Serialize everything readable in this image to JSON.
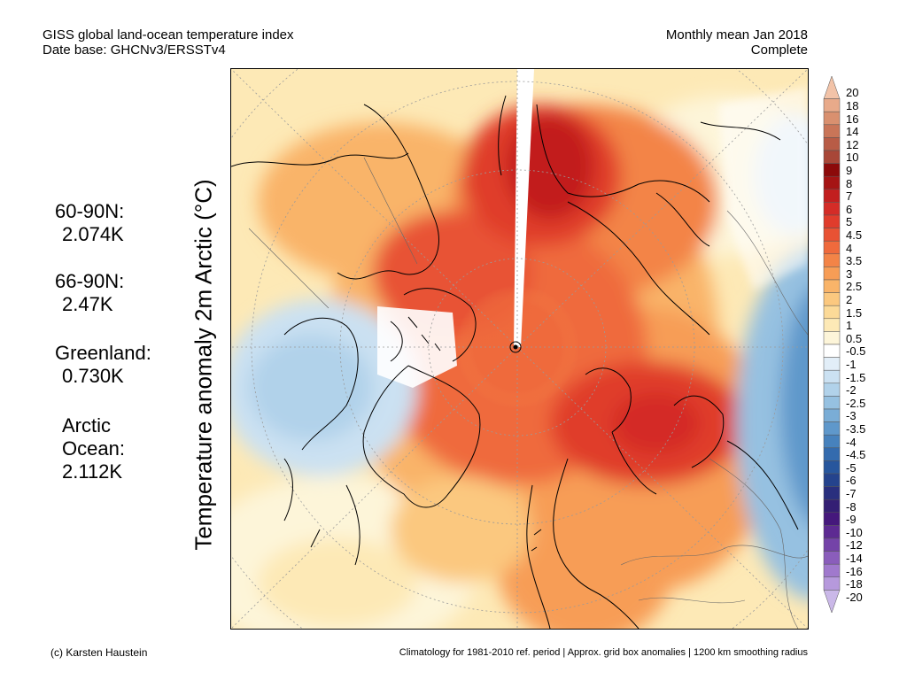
{
  "header": {
    "left_line1": "GISS global land-ocean temperature index",
    "left_line2": "Date base: GHCNv3/ERSSTv4",
    "right_line1": "Monthly mean Jan 2018",
    "right_line2": "Complete"
  },
  "y_axis_label": "Temperature anomaly 2m Arctic (°C)",
  "stats": [
    {
      "label": "60-90N:",
      "value": "2.074K"
    },
    {
      "label": "66-90N:",
      "value": "2.47K"
    },
    {
      "label": "Greenland:",
      "value": "0.730K"
    },
    {
      "label": "Arctic Ocean:",
      "label_line1": "Arctic",
      "label_line2": "Ocean:",
      "value": "2.112K"
    }
  ],
  "colorbar": {
    "labels": [
      "20",
      "18",
      "16",
      "14",
      "12",
      "10",
      "9",
      "8",
      "7",
      "6",
      "5",
      "4.5",
      "4",
      "3.5",
      "3",
      "2.5",
      "2",
      "1.5",
      "1",
      "0.5",
      "-0.5",
      "-1",
      "-1.5",
      "-2",
      "-2.5",
      "-3",
      "-3.5",
      "-4",
      "-4.5",
      "-5",
      "-6",
      "-7",
      "-8",
      "-9",
      "-10",
      "-12",
      "-14",
      "-16",
      "-18",
      "-20"
    ],
    "colors": [
      "#f2c3a8",
      "#e8aa8a",
      "#d9906f",
      "#c97558",
      "#b85c46",
      "#a84738",
      "#8c0a0a",
      "#a51414",
      "#c21f1f",
      "#d42c27",
      "#e03c2c",
      "#e85234",
      "#ef6a3c",
      "#f38447",
      "#f79d56",
      "#f9b469",
      "#fbc87f",
      "#fcda98",
      "#fde9b6",
      "#fdf5d9",
      "#ffffff",
      "#e2eef8",
      "#cbe1f2",
      "#b1d2ea",
      "#96c1e1",
      "#7aadd6",
      "#5f98cb",
      "#4782bd",
      "#346bae",
      "#27569d",
      "#24438d",
      "#292f7e",
      "#341f74",
      "#45187c",
      "#5d2a92",
      "#7443a8",
      "#8a5dbb",
      "#a079cd",
      "#b699dc",
      "#cab8e8"
    ]
  },
  "footer": {
    "left": "(c) Karsten Haustein",
    "right": "Climatology for 1981-2010 ref. period | Approx. grid box anomalies | 1200 km smoothing radius"
  }
}
